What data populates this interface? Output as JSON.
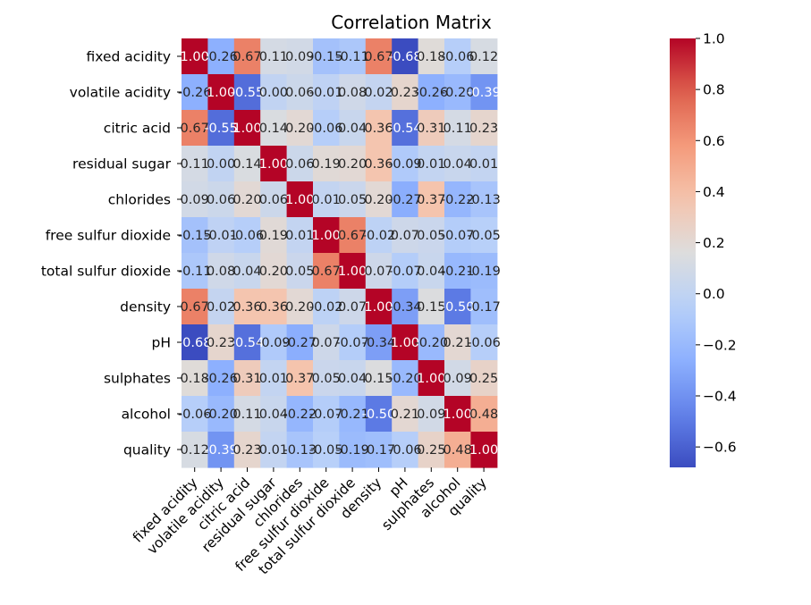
{
  "chart_data": {
    "type": "heatmap",
    "title": "Correlation Matrix",
    "xlabel": "",
    "ylabel": "",
    "colormap": "coolwarm",
    "vmin": -0.68,
    "vmax": 1.0,
    "labels": [
      "fixed acidity",
      "volatile acidity",
      "citric acid",
      "residual sugar",
      "chlorides",
      "free sulfur dioxide",
      "total sulfur dioxide",
      "density",
      "pH",
      "sulphates",
      "alcohol",
      "quality"
    ],
    "matrix": [
      [
        1.0,
        -0.26,
        0.67,
        0.11,
        0.09,
        -0.15,
        -0.11,
        0.67,
        -0.68,
        0.18,
        -0.06,
        0.12
      ],
      [
        -0.26,
        1.0,
        -0.55,
        0.0,
        0.06,
        -0.01,
        0.08,
        0.02,
        0.23,
        -0.26,
        -0.2,
        -0.39
      ],
      [
        0.67,
        -0.55,
        1.0,
        0.14,
        0.2,
        -0.06,
        0.04,
        0.36,
        -0.54,
        0.31,
        0.11,
        0.23
      ],
      [
        0.11,
        0.0,
        0.14,
        1.0,
        0.06,
        0.19,
        0.2,
        0.36,
        -0.09,
        0.01,
        0.04,
        0.01
      ],
      [
        0.09,
        0.06,
        0.2,
        0.06,
        1.0,
        0.01,
        0.05,
        0.2,
        -0.27,
        0.37,
        -0.22,
        -0.13
      ],
      [
        -0.15,
        -0.01,
        -0.06,
        0.19,
        0.01,
        1.0,
        0.67,
        -0.02,
        0.07,
        0.05,
        -0.07,
        -0.05
      ],
      [
        -0.11,
        0.08,
        0.04,
        0.2,
        0.05,
        0.67,
        1.0,
        0.07,
        -0.07,
        0.04,
        -0.21,
        -0.19
      ],
      [
        0.67,
        0.02,
        0.36,
        0.36,
        0.2,
        -0.02,
        0.07,
        1.0,
        -0.34,
        0.15,
        -0.5,
        -0.17
      ],
      [
        -0.68,
        0.23,
        -0.54,
        -0.09,
        -0.27,
        0.07,
        -0.07,
        -0.34,
        1.0,
        -0.2,
        0.21,
        -0.06
      ],
      [
        0.18,
        -0.26,
        0.31,
        0.01,
        0.37,
        0.05,
        0.04,
        0.15,
        -0.2,
        1.0,
        0.09,
        0.25
      ],
      [
        -0.06,
        -0.2,
        0.11,
        0.04,
        -0.22,
        -0.07,
        -0.21,
        -0.5,
        0.21,
        0.09,
        1.0,
        0.48
      ],
      [
        0.12,
        -0.39,
        0.23,
        0.01,
        -0.13,
        -0.05,
        -0.19,
        -0.17,
        -0.06,
        0.25,
        0.48,
        1.0
      ]
    ],
    "colorbar": {
      "ticks": [
        1.0,
        0.8,
        0.6,
        0.4,
        0.2,
        0.0,
        -0.2,
        -0.4,
        -0.6
      ],
      "tick_labels": [
        "1.0",
        "0.8",
        "0.6",
        "0.4",
        "0.2",
        "0.0",
        "−0.2",
        "−0.4",
        "−0.6"
      ]
    }
  }
}
